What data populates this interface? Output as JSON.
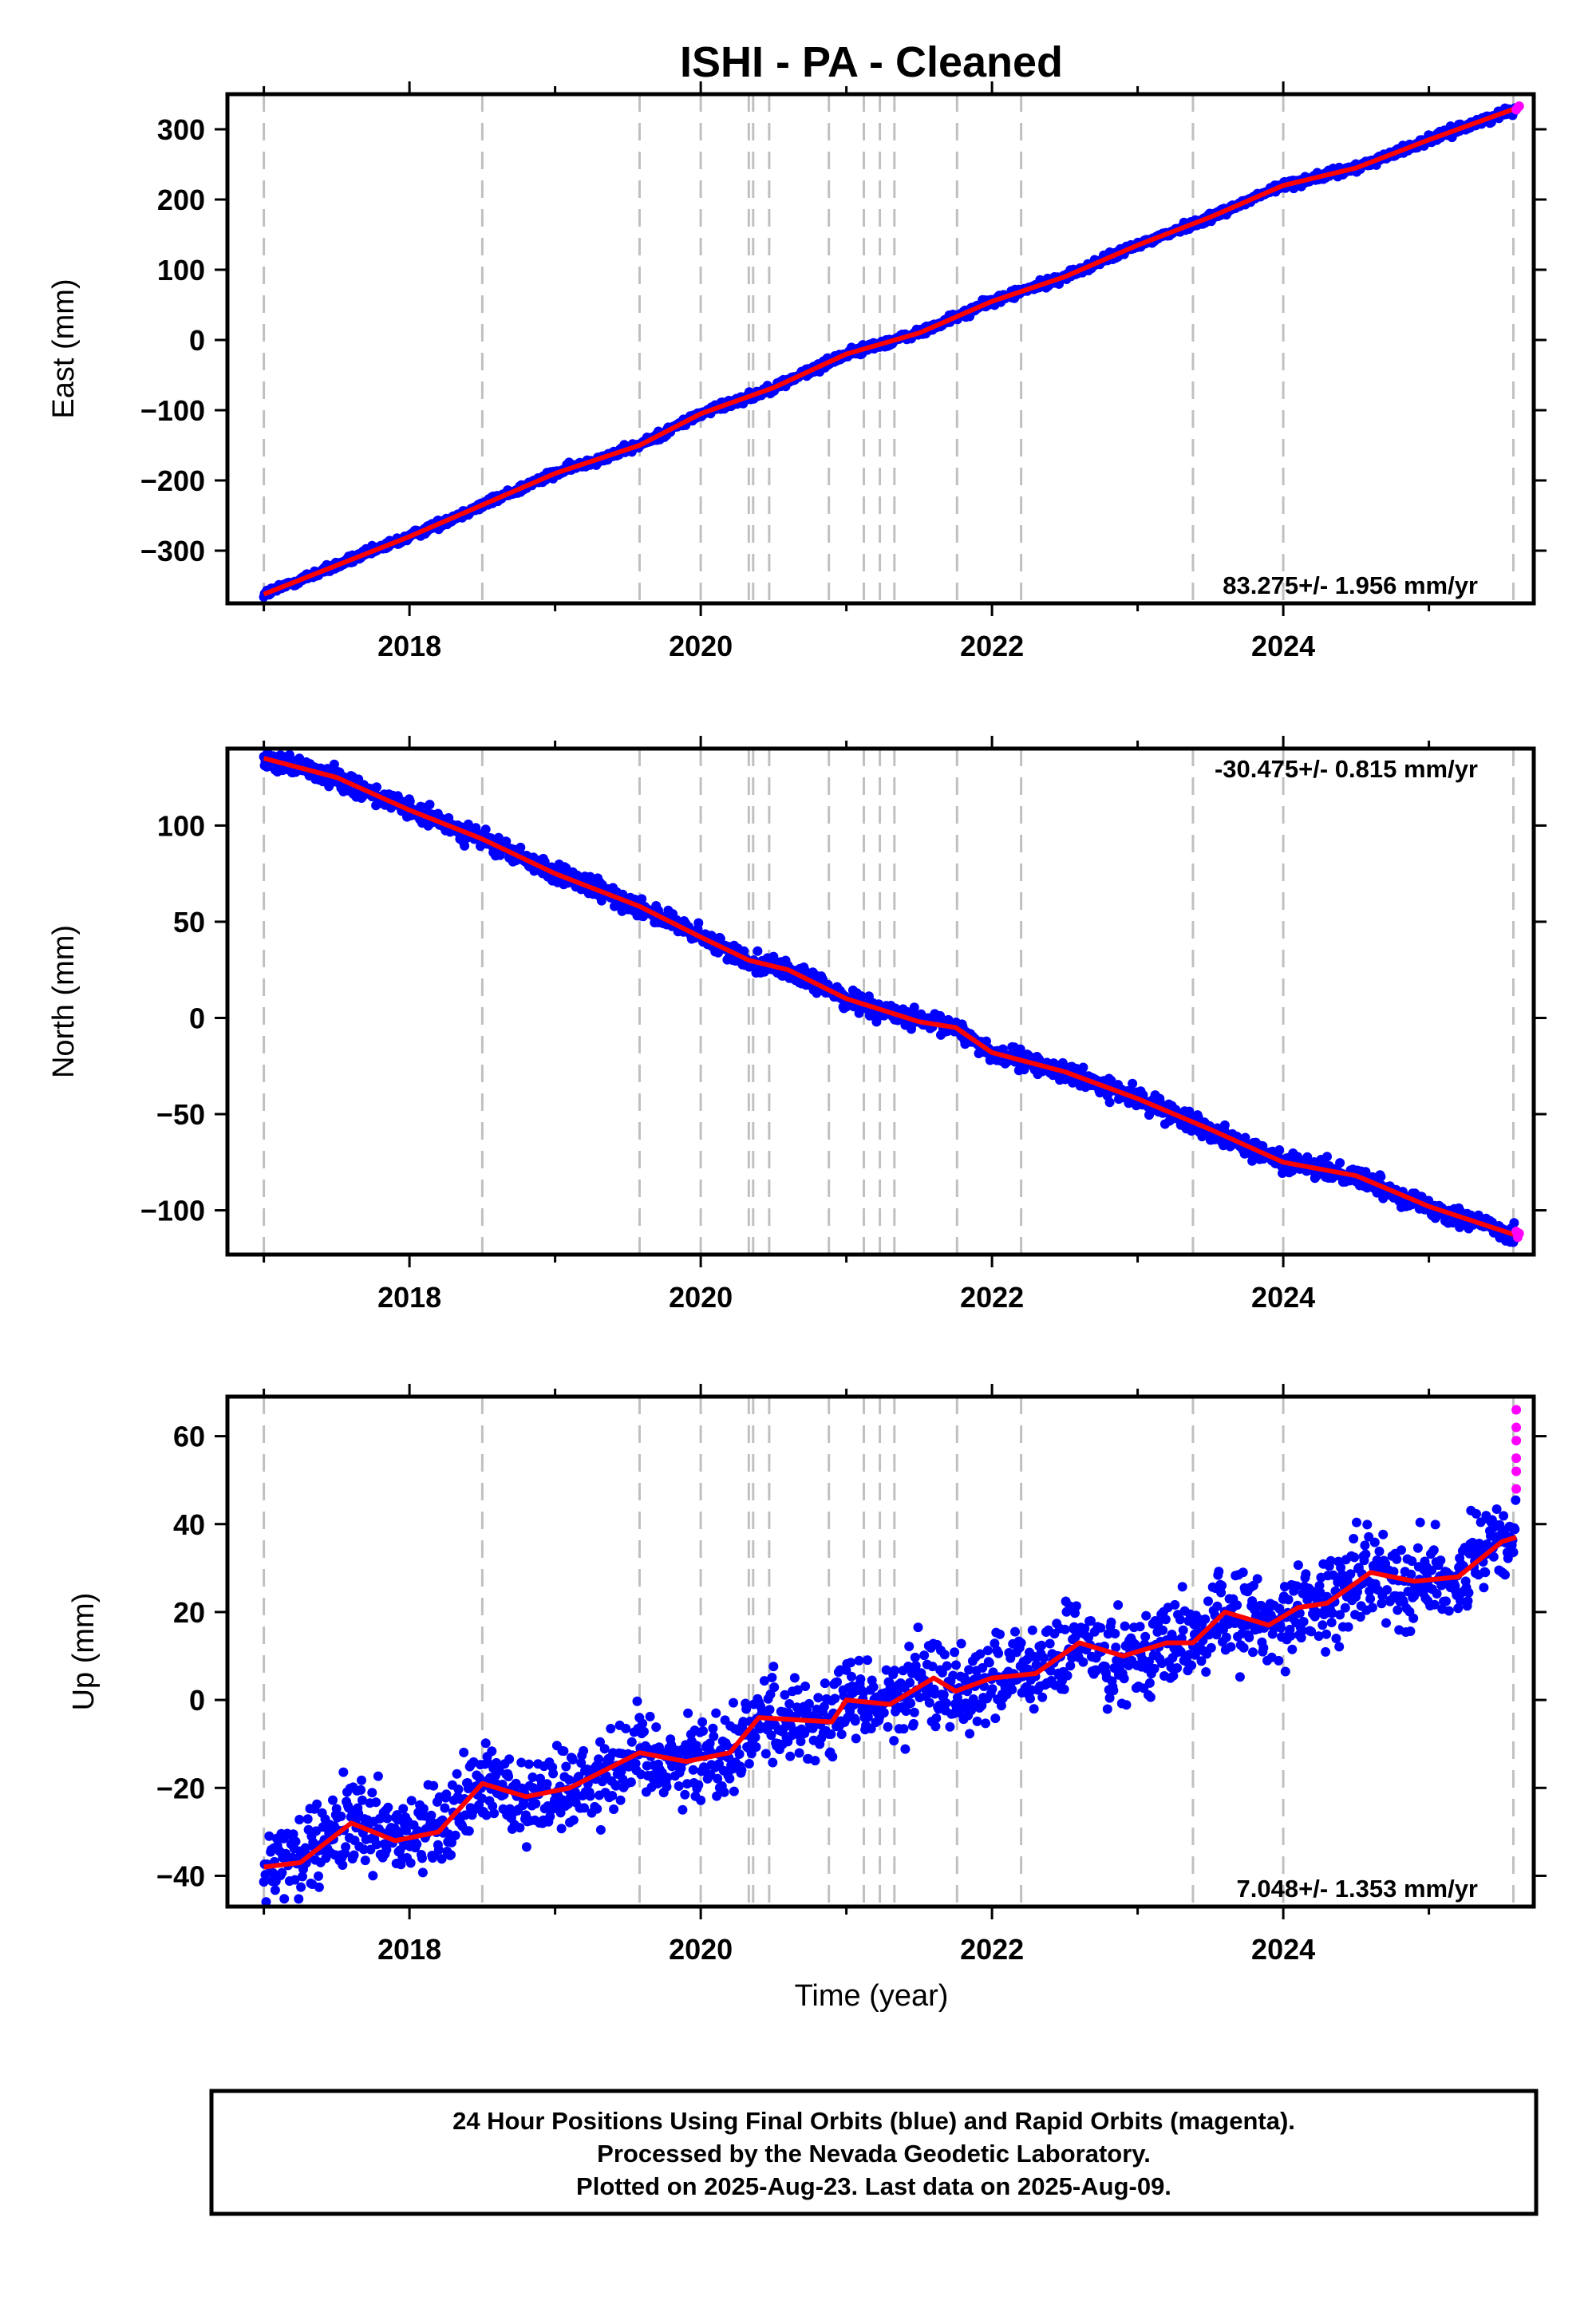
{
  "chart_data": {
    "title": "ISHI  - PA - Cleaned",
    "xlabel": "Time (year)",
    "colors": {
      "final": "#0000ff",
      "rapid": "#ff00ff",
      "model": "#ff0000",
      "events": "#c0c0c0"
    },
    "x_ticks": [
      "2018",
      "2020",
      "2022",
      "2024"
    ],
    "xlim": [
      2016.75,
      2025.72
    ],
    "event_lines": [
      2017.0,
      2018.5,
      2019.58,
      2020.0,
      2020.33,
      2020.36,
      2020.47,
      2020.88,
      2021.12,
      2021.23,
      2021.33,
      2021.76,
      2022.2,
      2023.38,
      2024.0,
      2025.58
    ],
    "panels": [
      {
        "type": "scatter",
        "component": "East",
        "ylabel": "East (mm)",
        "ylim": [
          -375,
          350
        ],
        "y_ticks": [
          300,
          200,
          100,
          0,
          -100,
          -200,
          -300
        ],
        "y_tick_labels": [
          "300",
          "200",
          "100",
          "0",
          "−100",
          "−200",
          "−300"
        ],
        "rate": "83.275+/- 1.956 mm/yr",
        "trend": {
          "x": [
            2017.0,
            2018.0,
            2018.5,
            2019.0,
            2019.58,
            2020.0,
            2020.5,
            2021.0,
            2021.5,
            2022.0,
            2022.5,
            2023.0,
            2023.5,
            2024.0,
            2024.5,
            2025.0,
            2025.6
          ],
          "y": [
            -362,
            -280,
            -235,
            -190,
            -150,
            -105,
            -68,
            -20,
            10,
            55,
            90,
            135,
            175,
            220,
            245,
            285,
            330
          ]
        },
        "noise_mm": 3,
        "rapid": {
          "x": [
            2025.6,
            2025.61,
            2025.62
          ],
          "y": [
            328,
            331,
            333
          ]
        }
      },
      {
        "type": "scatter",
        "component": "North",
        "ylabel": "North (mm)",
        "ylim": [
          -123,
          140
        ],
        "y_ticks": [
          100,
          50,
          0,
          -50,
          -100
        ],
        "y_tick_labels": [
          "100",
          "50",
          "0",
          "−50",
          "−100"
        ],
        "rate": "-30.475+/- 0.815 mm/yr",
        "trend": {
          "x": [
            2017.0,
            2017.5,
            2018.0,
            2018.5,
            2019.0,
            2019.58,
            2020.0,
            2020.33,
            2020.6,
            2021.0,
            2021.5,
            2021.75,
            2022.0,
            2022.5,
            2023.0,
            2023.5,
            2024.0,
            2024.5,
            2025.0,
            2025.6
          ],
          "y": [
            135,
            125,
            108,
            93,
            75,
            58,
            42,
            30,
            25,
            10,
            -2,
            -5,
            -18,
            -28,
            -42,
            -58,
            -75,
            -82,
            -98,
            -113
          ]
        },
        "noise_mm": 2.5,
        "rapid": {
          "x": [
            2025.6,
            2025.61,
            2025.62
          ],
          "y": [
            -111,
            -114,
            -112
          ]
        }
      },
      {
        "type": "scatter",
        "component": "Up",
        "ylabel": "Up (mm)",
        "ylim": [
          -47,
          69
        ],
        "y_ticks": [
          60,
          40,
          20,
          0,
          -20,
          -40
        ],
        "y_tick_labels": [
          "60",
          "40",
          "20",
          "0",
          "−20",
          "−40"
        ],
        "rate": "7.048+/- 1.353 mm/yr",
        "trend": {
          "x": [
            2017.0,
            2017.25,
            2017.6,
            2017.9,
            2018.2,
            2018.5,
            2018.8,
            2019.1,
            2019.58,
            2019.9,
            2020.2,
            2020.4,
            2020.9,
            2021.0,
            2021.3,
            2021.6,
            2021.75,
            2022.0,
            2022.3,
            2022.6,
            2022.9,
            2023.2,
            2023.38,
            2023.6,
            2023.9,
            2024.1,
            2024.3,
            2024.6,
            2024.9,
            2025.2,
            2025.5,
            2025.6
          ],
          "y": [
            -38,
            -37,
            -28,
            -32,
            -30,
            -19,
            -22,
            -20,
            -12,
            -14,
            -12,
            -4,
            -5,
            0,
            -1,
            5,
            2,
            5,
            6,
            13,
            10,
            13,
            13,
            20,
            17,
            21,
            22,
            29,
            27,
            28,
            36,
            37
          ]
        },
        "noise_mm": 5,
        "rapid": {
          "x": [
            2025.6,
            2025.6,
            2025.6,
            2025.6,
            2025.6,
            2025.6
          ],
          "y": [
            48,
            52,
            55,
            59,
            62,
            66
          ]
        }
      }
    ]
  },
  "footer": {
    "line1": "24 Hour Positions Using Final Orbits (blue) and Rapid Orbits (magenta).",
    "line2": "Processed by the Nevada Geodetic Laboratory.",
    "line3": "Plotted on 2025-Aug-23. Last data on 2025-Aug-09."
  }
}
